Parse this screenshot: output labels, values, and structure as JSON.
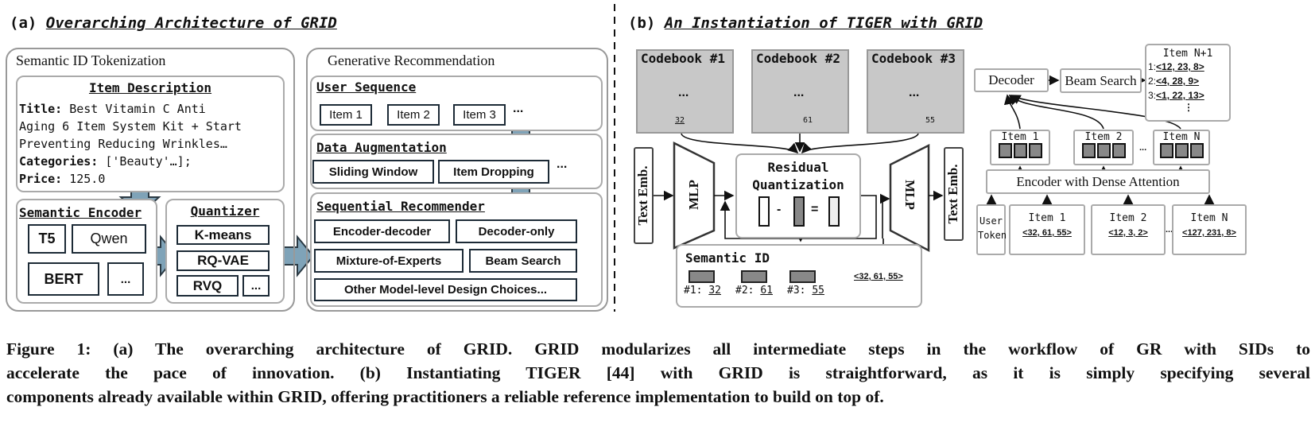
{
  "panel_a": {
    "title_prefix": "(a)",
    "title": "Overarching Architecture of GRID",
    "tokenization": {
      "title": "Semantic ID Tokenization",
      "item_description": {
        "header": "Item Description",
        "title_label": "Title:",
        "title_value_1": "Best Vitamin C Anti",
        "title_value_2": "Aging 6 Item System Kit + Start",
        "title_value_3": "Preventing Reducing Wrinkles…",
        "categories_label": "Categories:",
        "categories_value": "['Beauty'…];",
        "price_label": "Price:",
        "price_value": "125.0"
      },
      "semantic_encoder": {
        "header": "Semantic Encoder",
        "items": [
          "T5",
          "Qwen",
          "BERT",
          "..."
        ]
      },
      "quantizer": {
        "header": "Quantizer",
        "items": [
          "K-means",
          "RQ-VAE",
          "RVQ",
          "..."
        ]
      }
    },
    "generative": {
      "title": "Generative Recommendation",
      "user_sequence": {
        "header": "User Sequence",
        "items": [
          "Item 1",
          "Item 2",
          "Item 3"
        ],
        "more": "..."
      },
      "data_augmentation": {
        "header": "Data Augmentation",
        "items": [
          "Sliding Window",
          "Item Dropping"
        ],
        "more": "..."
      },
      "sequential_recommender": {
        "header": "Sequential Recommender",
        "items": [
          "Encoder-decoder",
          "Decoder-only",
          "Mixture-of-Experts",
          "Beam Search",
          "Other Model-level Design Choices..."
        ]
      }
    },
    "arrow_color": "#7fa3b8"
  },
  "panel_b": {
    "title_prefix": "(b)",
    "title": "An Instantiation of TIGER with GRID",
    "codebooks": [
      {
        "label": "Codebook #1",
        "index": "32"
      },
      {
        "label": "Codebook #2",
        "index": "61"
      },
      {
        "label": "Codebook #3",
        "index": "55"
      }
    ],
    "ellipsis": "...",
    "text_emb": "Text Emb.",
    "mlp": "MLP",
    "residual_quantization": {
      "line1": "Residual",
      "line2": "Quantization",
      "minus": "-",
      "equals": "="
    },
    "semantic_id": {
      "header": "Semantic ID",
      "codes": [
        {
          "label": "#1:",
          "value": "32"
        },
        {
          "label": "#2:",
          "value": "61"
        },
        {
          "label": "#3:",
          "value": "55"
        }
      ],
      "result": "<32, 61, 55>"
    },
    "decoder": "Decoder",
    "beam_search": "Beam Search",
    "output": {
      "header": "Item N+1",
      "rows": [
        {
          "rank": "1:",
          "sid": "<12, 23, 8>"
        },
        {
          "rank": "2:",
          "sid": "<4, 28, 9>"
        },
        {
          "rank": "3:",
          "sid": "<1, 22, 13>"
        }
      ],
      "more": "⋮"
    },
    "encoded_items": [
      "Item 1",
      "Item 2",
      "Item N"
    ],
    "encoded_more": "...",
    "encoder": "Encoder with Dense Attention",
    "user_token": {
      "line1": "User",
      "line2": "Token"
    },
    "input_items": [
      {
        "label": "Item 1",
        "sid": "<32, 61, 55>"
      },
      {
        "label": "Item 2",
        "sid": "<12, 3, 2>"
      },
      {
        "label": "Item N",
        "sid": "<127, 231, 8>"
      }
    ],
    "input_more": "..."
  },
  "caption": {
    "line1": "Figure 1: (a) The overarching architecture of GRID. GRID modularizes all intermediate steps in the workflow of GR with SIDs to",
    "line2": "accelerate the pace of innovation. (b) Instantiating TIGER [44] with GRID is straightforward, as it is simply specifying several",
    "line3": "components already available within GRID, offering practitioners a reliable reference implementation to build on top of."
  }
}
